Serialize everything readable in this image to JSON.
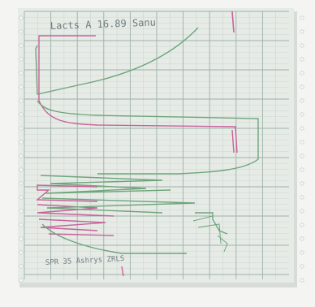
{
  "photo": {
    "subject": "chart recorder strip on grid paper",
    "colors": {
      "paper": "#e6ebe6",
      "grid_minor": "#cdd6d2",
      "grid_major": "#9fb0aa",
      "trace_green": "#6fa57a",
      "trace_pink": "#c9629a",
      "ink": "#7a8789"
    }
  },
  "handwriting": {
    "top_note": "Lacts A 16.89 Sanu",
    "bottom_note": "SPR 35 Ashrys  ZRLS"
  }
}
